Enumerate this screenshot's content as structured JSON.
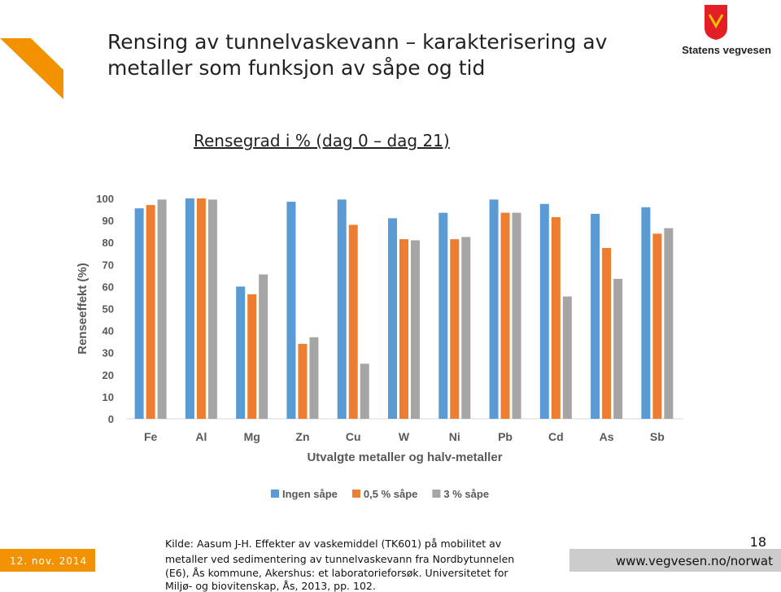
{
  "slide": {
    "title": [
      "Rensing av tunnelvaskevann – karakterisering av",
      "metaller som funksjon av såpe og tid"
    ],
    "logo_text": "Statens vegvesen",
    "subtitle": "Rensegrad i % (dag 0 – dag 21)",
    "date": "12. nov. 2014",
    "source": [
      "Kilde: Aasum J-H. Effekter av vaskemiddel (TK601) på mobilitet av",
      "metaller ved sedimentering av tunnelvaskevann fra Nordbytunnelen",
      "(E6), Ås kommune, Akershus: et laboratorieforsøk. Universitetet for",
      "Miljø- og biovitenskap, Ås, 2013, pp. 102."
    ],
    "page_number": "18",
    "url": "www.vegvesen.no/norwat"
  },
  "chart_data": {
    "type": "bar",
    "x_label": "Utvalgte metaller og halv-metaller",
    "y_label": "Renseeffekt (%)",
    "categories": [
      "Fe",
      "Al",
      "Mg",
      "Zn",
      "Cu",
      "W",
      "Ni",
      "Pb",
      "Cd",
      "As",
      "Sb"
    ],
    "series": [
      {
        "name": "Ingen såpe",
        "color": "#5b9bd5",
        "values": [
          95.5,
          100,
          60,
          98.5,
          99.5,
          91,
          93.5,
          99.5,
          97.5,
          93,
          96
        ]
      },
      {
        "name": "0,5 % såpe",
        "color": "#ed7d31",
        "values": [
          97,
          100,
          56.5,
          34,
          88,
          81.5,
          81.5,
          93.5,
          91.5,
          77.5,
          84
        ]
      },
      {
        "name": "3 % såpe",
        "color": "#a5a5a5",
        "values": [
          99.5,
          99.5,
          65.5,
          37,
          25,
          81,
          82.5,
          93.5,
          55.5,
          63.5,
          86.5
        ]
      }
    ],
    "ylim": [
      0,
      100
    ],
    "yticks": [
      0,
      10,
      20,
      30,
      40,
      50,
      60,
      70,
      80,
      90,
      100
    ],
    "legend": "bottom"
  }
}
